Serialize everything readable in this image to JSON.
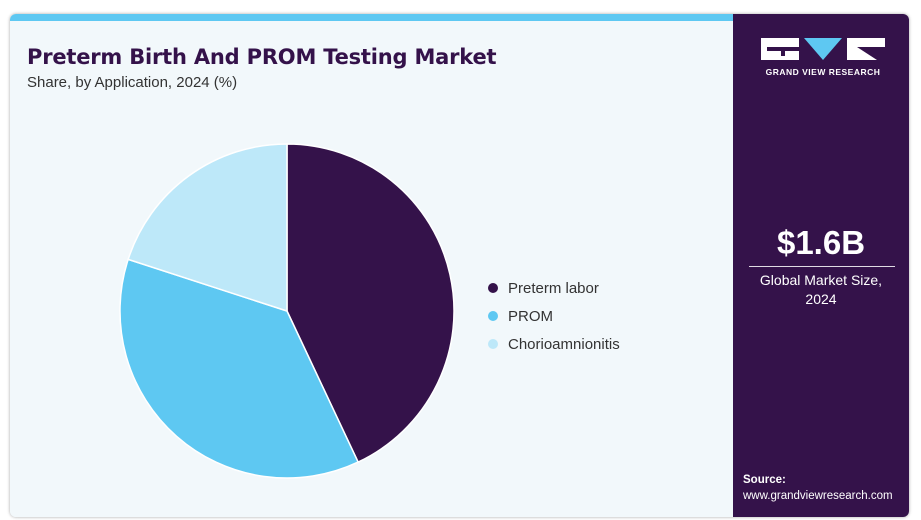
{
  "header": {
    "title": "Preterm Birth And PROM Testing Market",
    "subtitle": "Share, by Application, 2024 (%)"
  },
  "chart_data": {
    "type": "pie",
    "categories": [
      "Preterm labor",
      "PROM",
      "Chorioamnionitis"
    ],
    "values": [
      43,
      37,
      20
    ],
    "colors": [
      "#34124a",
      "#5ec8f2",
      "#bde8f9"
    ],
    "legend_position": "right"
  },
  "side_panel": {
    "logo_text": "GRAND VIEW RESEARCH",
    "market_value": "$1.6B",
    "market_desc_line1": "Global Market Size,",
    "market_desc_line2": "2024",
    "source_label": "Source:",
    "source_url": "www.grandviewresearch.com",
    "colors": {
      "background": "#34124a",
      "accent": "#5ec8f2"
    }
  }
}
